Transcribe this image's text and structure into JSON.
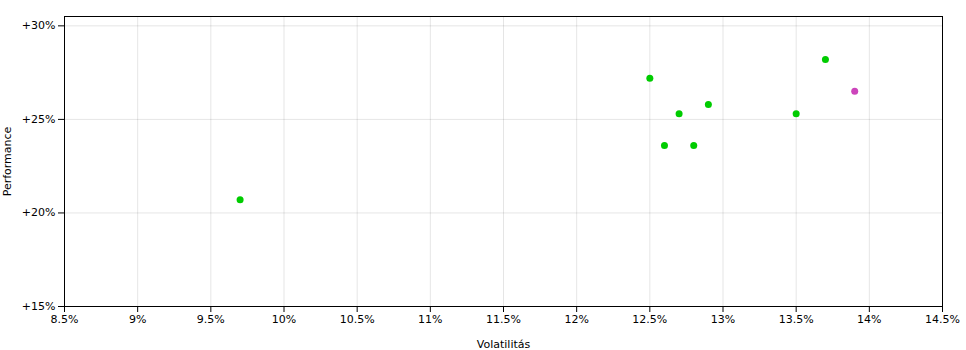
{
  "chart_data": {
    "type": "scatter",
    "xlabel": "Volatilitás",
    "ylabel": "Performance",
    "series": [
      {
        "color": "#00cc00",
        "x": [
          0.097,
          0.125,
          0.127,
          0.129,
          0.126,
          0.128,
          0.135,
          0.137
        ],
        "values": [
          0.207,
          0.272,
          0.253,
          0.258,
          0.236,
          0.236,
          0.253,
          0.282
        ]
      },
      {
        "color": "#cc44bb",
        "x": [
          0.139
        ],
        "values": [
          0.265
        ]
      }
    ],
    "xlim": [
      0.085,
      0.145
    ],
    "ylim": [
      0.15,
      0.305
    ],
    "xticks": [
      {
        "value": 0.085,
        "label": "8.5%"
      },
      {
        "value": 0.09,
        "label": "9%"
      },
      {
        "value": 0.095,
        "label": "9.5%"
      },
      {
        "value": 0.1,
        "label": "10%"
      },
      {
        "value": 0.105,
        "label": "10.5%"
      },
      {
        "value": 0.11,
        "label": "11%"
      },
      {
        "value": 0.115,
        "label": "11.5%"
      },
      {
        "value": 0.12,
        "label": "12%"
      },
      {
        "value": 0.125,
        "label": "12.5%"
      },
      {
        "value": 0.13,
        "label": "13%"
      },
      {
        "value": 0.135,
        "label": "13.5%"
      },
      {
        "value": 0.14,
        "label": "14%"
      },
      {
        "value": 0.145,
        "label": "14.5%"
      }
    ],
    "yticks": [
      {
        "value": 0.15,
        "label": "+15%"
      },
      {
        "value": 0.2,
        "label": "+20%"
      },
      {
        "value": 0.25,
        "label": "+25%"
      },
      {
        "value": 0.3,
        "label": "+30%"
      }
    ],
    "grid": true,
    "marker": "circle"
  }
}
